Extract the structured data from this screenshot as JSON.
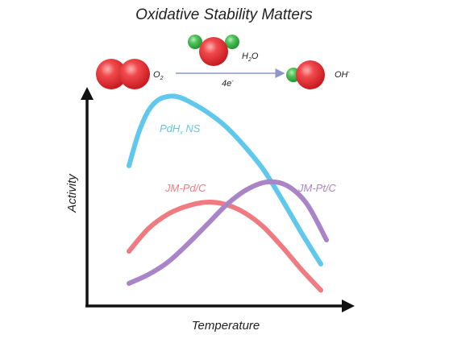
{
  "title": "Oxidative Stability Matters",
  "reaction": {
    "reactant_base": "O",
    "reactant_sub": "2",
    "water_base": "H",
    "water_sub": "2",
    "water_tail": "O",
    "electrons_base": "4e",
    "electrons_sup": "-",
    "product_base": "OH",
    "product_sup": "-"
  },
  "axes": {
    "xlabel": "Temperature",
    "ylabel": "Activity"
  },
  "colors": {
    "oxygen": "#e02a2e",
    "hydrogen": "#3cb54a",
    "reaction_arrow": "#8e96c8",
    "axis": "#111111"
  },
  "chart_data": {
    "type": "line",
    "xlabel": "Temperature",
    "ylabel": "Activity",
    "series": [
      {
        "name": "PdHx NS",
        "label_base": "PdH",
        "label_sub": "x",
        "label_tail": " NS",
        "color": "#5fc8ec",
        "x": [
          0.0,
          0.05,
          0.1,
          0.15,
          0.2,
          0.25,
          0.3,
          0.4,
          0.5,
          0.6,
          0.7,
          0.8,
          0.9,
          1.0
        ],
        "y": [
          0.62,
          0.8,
          0.92,
          0.98,
          1.0,
          1.0,
          0.98,
          0.92,
          0.84,
          0.73,
          0.6,
          0.43,
          0.25,
          0.08
        ]
      },
      {
        "name": "JM-Pd/C",
        "label_base": "JM-Pd/C",
        "label_sub": "",
        "label_tail": "",
        "color": "#ef7b80",
        "x": [
          0.0,
          0.1,
          0.2,
          0.3,
          0.4,
          0.5,
          0.6,
          0.7,
          0.8,
          0.9,
          1.0
        ],
        "y": [
          0.22,
          0.33,
          0.4,
          0.44,
          0.46,
          0.45,
          0.41,
          0.34,
          0.24,
          0.13,
          0.03
        ]
      },
      {
        "name": "JM-Pt/C",
        "label_base": "JM-Pt/C",
        "label_sub": "",
        "label_tail": "",
        "color": "#a985c8",
        "x": [
          0.0,
          0.1,
          0.2,
          0.3,
          0.4,
          0.5,
          0.6,
          0.7,
          0.8,
          0.9,
          1.0
        ],
        "y": [
          0.08,
          0.13,
          0.2,
          0.3,
          0.41,
          0.52,
          0.6,
          0.64,
          0.62,
          0.52,
          0.32
        ]
      }
    ]
  }
}
